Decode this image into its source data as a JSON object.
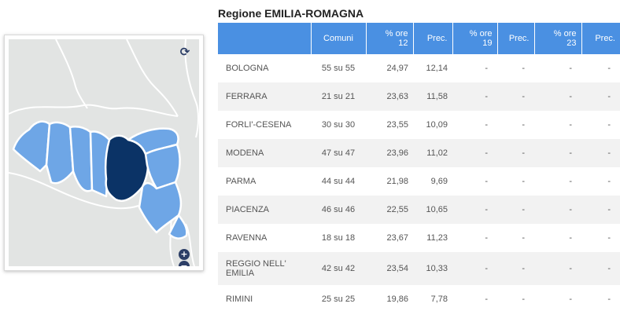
{
  "title": "Regione EMILIA-ROMAGNA",
  "map": {
    "refresh_icon": "refresh-icon",
    "zoom_in_icon": "plus-icon",
    "zoom_out_icon": "minus-icon",
    "zoom_in_glyph": "+",
    "zoom_out_glyph": "−",
    "refresh_glyph": "⟳",
    "colors": {
      "background": "#e2e4e3",
      "province": "#6ea6e6",
      "selected": "#0b3366",
      "border": "#ffffff"
    }
  },
  "table": {
    "headers": {
      "comuni": "Comuni",
      "ore12_a": "% ore",
      "ore12_b": "12",
      "prec1": "Prec.",
      "ore19_a": "% ore",
      "ore19_b": "19",
      "prec2": "Prec.",
      "ore23_a": "% ore",
      "ore23_b": "23",
      "prec3": "Prec."
    },
    "rows": [
      {
        "name": "BOLOGNA",
        "comuni": "55 su 55",
        "ore12": "24,97",
        "prec12": "12,14",
        "ore19": "-",
        "prec19": "-",
        "ore23": "-",
        "prec23": "-"
      },
      {
        "name": "FERRARA",
        "comuni": "21 su 21",
        "ore12": "23,63",
        "prec12": "11,58",
        "ore19": "-",
        "prec19": "-",
        "ore23": "-",
        "prec23": "-"
      },
      {
        "name": "FORLI'-CESENA",
        "comuni": "30 su 30",
        "ore12": "23,55",
        "prec12": "10,09",
        "ore19": "-",
        "prec19": "-",
        "ore23": "-",
        "prec23": "-"
      },
      {
        "name": "MODENA",
        "comuni": "47 su 47",
        "ore12": "23,96",
        "prec12": "11,02",
        "ore19": "-",
        "prec19": "-",
        "ore23": "-",
        "prec23": "-"
      },
      {
        "name": "PARMA",
        "comuni": "44 su 44",
        "ore12": "21,98",
        "prec12": "9,69",
        "ore19": "-",
        "prec19": "-",
        "ore23": "-",
        "prec23": "-"
      },
      {
        "name": "PIACENZA",
        "comuni": "46 su 46",
        "ore12": "22,55",
        "prec12": "10,65",
        "ore19": "-",
        "prec19": "-",
        "ore23": "-",
        "prec23": "-"
      },
      {
        "name": "RAVENNA",
        "comuni": "18 su 18",
        "ore12": "23,67",
        "prec12": "11,23",
        "ore19": "-",
        "prec19": "-",
        "ore23": "-",
        "prec23": "-"
      },
      {
        "name": "REGGIO NELL' EMILIA",
        "comuni": "42 su 42",
        "ore12": "23,54",
        "prec12": "10,33",
        "ore19": "-",
        "prec19": "-",
        "ore23": "-",
        "prec23": "-"
      },
      {
        "name": "RIMINI",
        "comuni": "25 su 25",
        "ore12": "19,86",
        "prec12": "7,78",
        "ore19": "-",
        "prec19": "-",
        "ore23": "-",
        "prec23": "-"
      }
    ]
  }
}
